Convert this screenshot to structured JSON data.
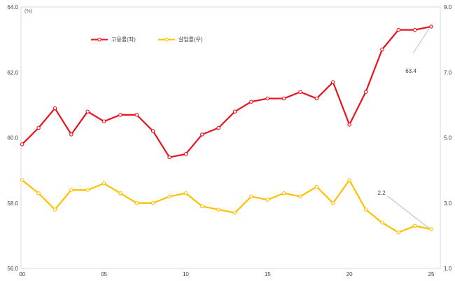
{
  "chart_data": {
    "type": "line",
    "title": "",
    "unit_label": "(%)",
    "grid": false,
    "legend_position": "top",
    "x": [
      "00",
      "01",
      "02",
      "03",
      "04",
      "05",
      "06",
      "07",
      "08",
      "09",
      "10",
      "11",
      "12",
      "13",
      "14",
      "15",
      "16",
      "17",
      "18",
      "19",
      "20",
      "21",
      "22",
      "23",
      "24",
      "25"
    ],
    "x_tick_labels": [
      "00",
      "05",
      "10",
      "15",
      "20",
      "25"
    ],
    "series": [
      {
        "id": "employment-rate",
        "name": "고용률(좌)",
        "axis": "left",
        "color": "#e8131d",
        "values": [
          59.8,
          60.3,
          60.9,
          60.1,
          60.8,
          60.5,
          60.7,
          60.7,
          60.2,
          59.4,
          59.5,
          60.1,
          60.3,
          60.8,
          61.1,
          61.2,
          61.2,
          61.4,
          61.2,
          61.7,
          60.4,
          61.4,
          62.7,
          63.3,
          63.3,
          63.4
        ]
      },
      {
        "id": "unemployment-rate",
        "name": "실업률(우)",
        "axis": "right",
        "color": "#ffc000",
        "values": [
          3.7,
          3.3,
          2.8,
          3.4,
          3.4,
          3.6,
          3.3,
          3.0,
          3.0,
          3.2,
          3.3,
          2.9,
          2.8,
          2.7,
          3.2,
          3.1,
          3.3,
          3.2,
          3.5,
          3.0,
          3.7,
          2.8,
          2.4,
          2.1,
          2.3,
          2.2
        ]
      }
    ],
    "axes": {
      "left": {
        "min": 56.0,
        "max": 64.0,
        "ticks": [
          "64.0",
          "62.0",
          "60.0",
          "58.0",
          "56.0"
        ]
      },
      "right": {
        "min": 1.0,
        "max": 9.0,
        "ticks": [
          "9.0",
          "7.0",
          "5.0",
          "3.0",
          "1.0"
        ]
      }
    },
    "annotations": [
      {
        "text": "63.4",
        "series_index": 0,
        "x_index": 25
      },
      {
        "text": "2.2",
        "series_index": 1,
        "x_index": 25
      }
    ]
  },
  "colors": {
    "plot_border": "#d9d9d9",
    "tick_text": "#404040",
    "callout_line": "#bdbdbd",
    "marker_fill": "#ffffff"
  }
}
